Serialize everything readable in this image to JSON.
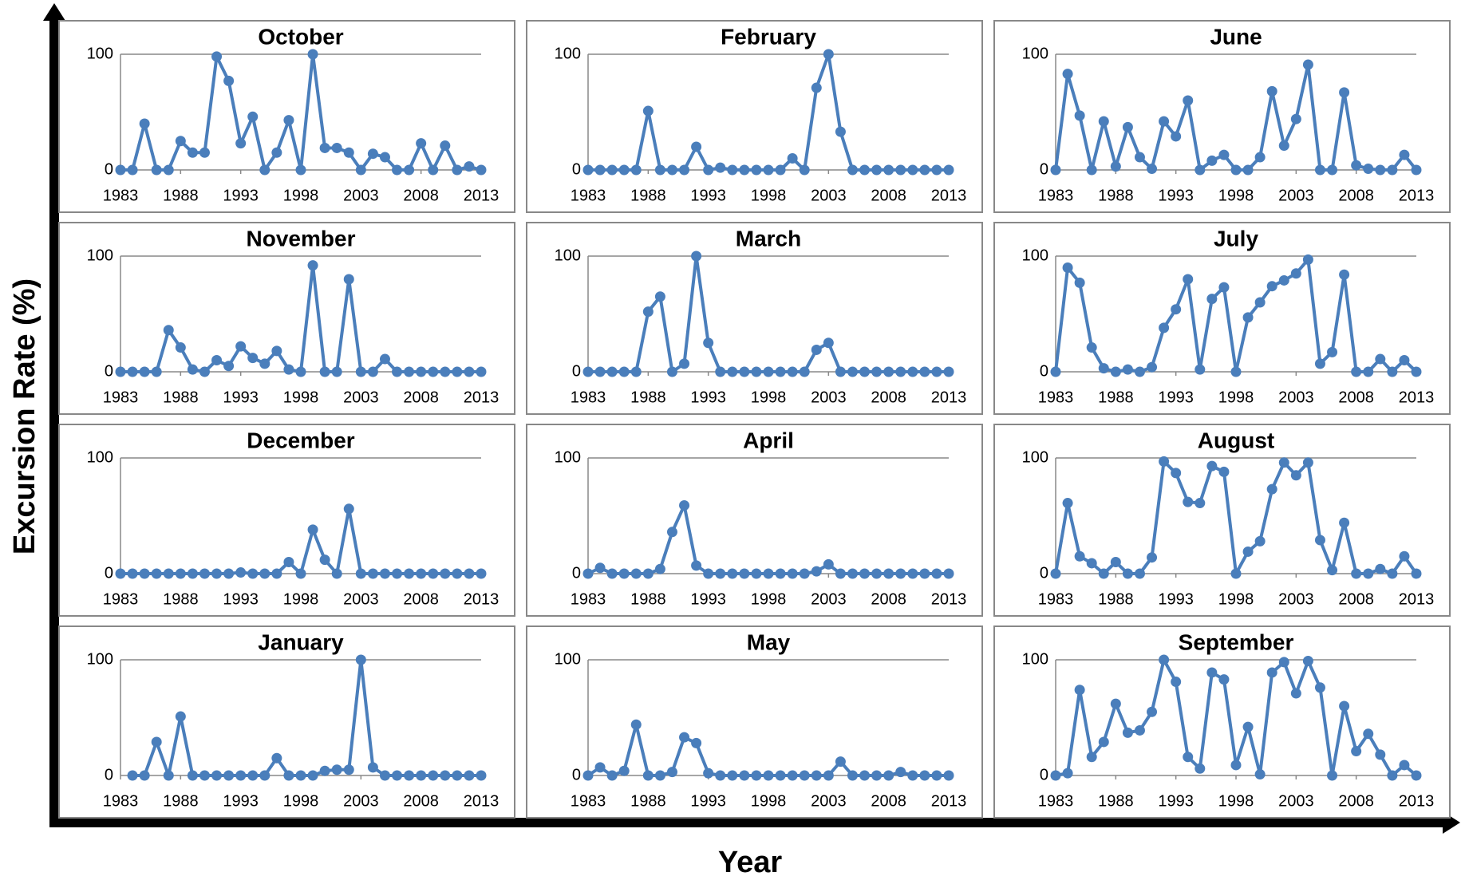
{
  "axis_labels": {
    "y": "Excursion Rate (%)",
    "x": "Year"
  },
  "chart_data": [
    {
      "type": "line",
      "title": "October",
      "color": "#4a7ebb",
      "grid": true,
      "xlim": [
        1983,
        2013
      ],
      "ylim": [
        0,
        100
      ],
      "xticks": [
        1983,
        1988,
        1993,
        1998,
        2003,
        2008,
        2013
      ],
      "yticks": [
        0,
        100
      ],
      "x": [
        1983,
        1984,
        1985,
        1986,
        1987,
        1988,
        1989,
        1990,
        1991,
        1992,
        1993,
        1994,
        1995,
        1996,
        1997,
        1998,
        1999,
        2000,
        2001,
        2002,
        2003,
        2004,
        2005,
        2006,
        2007,
        2008,
        2009,
        2010,
        2011,
        2012,
        2013
      ],
      "series": [
        {
          "values": [
            0,
            0,
            40,
            0,
            0,
            25,
            15,
            15,
            98,
            77,
            23,
            46,
            0,
            15,
            43,
            0,
            100,
            19,
            19,
            15,
            0,
            14,
            11,
            0,
            0,
            23,
            0,
            21,
            0,
            3,
            0
          ]
        }
      ]
    },
    {
      "type": "line",
      "title": "February",
      "color": "#4a7ebb",
      "grid": true,
      "xlim": [
        1983,
        2013
      ],
      "ylim": [
        0,
        100
      ],
      "xticks": [
        1983,
        1988,
        1993,
        1998,
        2003,
        2008,
        2013
      ],
      "yticks": [
        0,
        100
      ],
      "x": [
        1983,
        1984,
        1985,
        1986,
        1987,
        1988,
        1989,
        1990,
        1991,
        1992,
        1993,
        1994,
        1995,
        1996,
        1997,
        1998,
        1999,
        2000,
        2001,
        2002,
        2003,
        2004,
        2005,
        2006,
        2007,
        2008,
        2009,
        2010,
        2011,
        2012,
        2013
      ],
      "series": [
        {
          "values": [
            0,
            0,
            0,
            0,
            0,
            51,
            0,
            0,
            0,
            20,
            0,
            2,
            0,
            0,
            0,
            0,
            0,
            10,
            0,
            71,
            100,
            33,
            0,
            0,
            0,
            0,
            0,
            0,
            0,
            0,
            0
          ]
        }
      ]
    },
    {
      "type": "line",
      "title": "June",
      "color": "#4a7ebb",
      "grid": true,
      "xlim": [
        1983,
        2013
      ],
      "ylim": [
        0,
        100
      ],
      "xticks": [
        1983,
        1988,
        1993,
        1998,
        2003,
        2008,
        2013
      ],
      "yticks": [
        0,
        100
      ],
      "x": [
        1983,
        1984,
        1985,
        1986,
        1987,
        1988,
        1989,
        1990,
        1991,
        1992,
        1993,
        1994,
        1995,
        1996,
        1997,
        1998,
        1999,
        2000,
        2001,
        2002,
        2003,
        2004,
        2005,
        2006,
        2007,
        2008,
        2009,
        2010,
        2011,
        2012,
        2013
      ],
      "series": [
        {
          "values": [
            0,
            83,
            47,
            0,
            42,
            3,
            37,
            11,
            1,
            42,
            29,
            60,
            0,
            8,
            13,
            0,
            0,
            11,
            68,
            21,
            44,
            91,
            0,
            0,
            67,
            4,
            1,
            0,
            0,
            13,
            0
          ]
        }
      ]
    },
    {
      "type": "line",
      "title": "November",
      "color": "#4a7ebb",
      "grid": true,
      "xlim": [
        1983,
        2013
      ],
      "ylim": [
        0,
        100
      ],
      "xticks": [
        1983,
        1988,
        1993,
        1998,
        2003,
        2008,
        2013
      ],
      "yticks": [
        0,
        100
      ],
      "x": [
        1983,
        1984,
        1985,
        1986,
        1987,
        1988,
        1989,
        1990,
        1991,
        1992,
        1993,
        1994,
        1995,
        1996,
        1997,
        1998,
        1999,
        2000,
        2001,
        2002,
        2003,
        2004,
        2005,
        2006,
        2007,
        2008,
        2009,
        2010,
        2011,
        2012,
        2013
      ],
      "series": [
        {
          "values": [
            0,
            0,
            0,
            0,
            36,
            21,
            2,
            0,
            10,
            5,
            22,
            12,
            7,
            18,
            2,
            0,
            92,
            0,
            0,
            80,
            0,
            0,
            11,
            0,
            0,
            0,
            0,
            0,
            0,
            0,
            0
          ]
        }
      ]
    },
    {
      "type": "line",
      "title": "March",
      "color": "#4a7ebb",
      "grid": true,
      "xlim": [
        1983,
        2013
      ],
      "ylim": [
        0,
        100
      ],
      "xticks": [
        1983,
        1988,
        1993,
        1998,
        2003,
        2008,
        2013
      ],
      "yticks": [
        0,
        100
      ],
      "x": [
        1983,
        1984,
        1985,
        1986,
        1987,
        1988,
        1989,
        1990,
        1991,
        1992,
        1993,
        1994,
        1995,
        1996,
        1997,
        1998,
        1999,
        2000,
        2001,
        2002,
        2003,
        2004,
        2005,
        2006,
        2007,
        2008,
        2009,
        2010,
        2011,
        2012,
        2013
      ],
      "series": [
        {
          "values": [
            0,
            0,
            0,
            0,
            0,
            52,
            65,
            0,
            7,
            100,
            25,
            0,
            0,
            0,
            0,
            0,
            0,
            0,
            0,
            19,
            25,
            0,
            0,
            0,
            0,
            0,
            0,
            0,
            0,
            0,
            0
          ]
        }
      ]
    },
    {
      "type": "line",
      "title": "July",
      "color": "#4a7ebb",
      "grid": true,
      "xlim": [
        1983,
        2013
      ],
      "ylim": [
        0,
        100
      ],
      "xticks": [
        1983,
        1988,
        1993,
        1998,
        2003,
        2008,
        2013
      ],
      "yticks": [
        0,
        100
      ],
      "x": [
        1983,
        1984,
        1985,
        1986,
        1987,
        1988,
        1989,
        1990,
        1991,
        1992,
        1993,
        1994,
        1995,
        1996,
        1997,
        1998,
        1999,
        2000,
        2001,
        2002,
        2003,
        2004,
        2005,
        2006,
        2007,
        2008,
        2009,
        2010,
        2011,
        2012,
        2013
      ],
      "series": [
        {
          "values": [
            0,
            90,
            77,
            21,
            3,
            0,
            2,
            0,
            4,
            38,
            54,
            80,
            2,
            63,
            73,
            0,
            47,
            60,
            74,
            79,
            85,
            97,
            7,
            17,
            84,
            0,
            0,
            11,
            0,
            10,
            0
          ]
        }
      ]
    },
    {
      "type": "line",
      "title": "December",
      "color": "#4a7ebb",
      "grid": true,
      "xlim": [
        1983,
        2013
      ],
      "ylim": [
        0,
        100
      ],
      "xticks": [
        1983,
        1988,
        1993,
        1998,
        2003,
        2008,
        2013
      ],
      "yticks": [
        0,
        100
      ],
      "x": [
        1983,
        1984,
        1985,
        1986,
        1987,
        1988,
        1989,
        1990,
        1991,
        1992,
        1993,
        1994,
        1995,
        1996,
        1997,
        1998,
        1999,
        2000,
        2001,
        2002,
        2003,
        2004,
        2005,
        2006,
        2007,
        2008,
        2009,
        2010,
        2011,
        2012,
        2013
      ],
      "series": [
        {
          "values": [
            0,
            0,
            0,
            0,
            0,
            0,
            0,
            0,
            0,
            0,
            1,
            0,
            0,
            0,
            10,
            0,
            38,
            12,
            0,
            56,
            0,
            0,
            0,
            0,
            0,
            0,
            0,
            0,
            0,
            0,
            0
          ]
        }
      ]
    },
    {
      "type": "line",
      "title": "April",
      "color": "#4a7ebb",
      "grid": true,
      "xlim": [
        1983,
        2013
      ],
      "ylim": [
        0,
        100
      ],
      "xticks": [
        1983,
        1988,
        1993,
        1998,
        2003,
        2008,
        2013
      ],
      "yticks": [
        0,
        100
      ],
      "x": [
        1983,
        1984,
        1985,
        1986,
        1987,
        1988,
        1989,
        1990,
        1991,
        1992,
        1993,
        1994,
        1995,
        1996,
        1997,
        1998,
        1999,
        2000,
        2001,
        2002,
        2003,
        2004,
        2005,
        2006,
        2007,
        2008,
        2009,
        2010,
        2011,
        2012,
        2013
      ],
      "series": [
        {
          "values": [
            0,
            5,
            0,
            0,
            0,
            0,
            4,
            36,
            59,
            7,
            0,
            0,
            0,
            0,
            0,
            0,
            0,
            0,
            0,
            2,
            8,
            0,
            0,
            0,
            0,
            0,
            0,
            0,
            0,
            0,
            0
          ]
        }
      ]
    },
    {
      "type": "line",
      "title": "August",
      "color": "#4a7ebb",
      "grid": true,
      "xlim": [
        1983,
        2013
      ],
      "ylim": [
        0,
        100
      ],
      "xticks": [
        1983,
        1988,
        1993,
        1998,
        2003,
        2008,
        2013
      ],
      "yticks": [
        0,
        100
      ],
      "x": [
        1983,
        1984,
        1985,
        1986,
        1987,
        1988,
        1989,
        1990,
        1991,
        1992,
        1993,
        1994,
        1995,
        1996,
        1997,
        1998,
        1999,
        2000,
        2001,
        2002,
        2003,
        2004,
        2005,
        2006,
        2007,
        2008,
        2009,
        2010,
        2011,
        2012,
        2013
      ],
      "series": [
        {
          "values": [
            0,
            61,
            15,
            9,
            0,
            10,
            0,
            0,
            14,
            97,
            87,
            62,
            61,
            93,
            88,
            0,
            19,
            28,
            73,
            96,
            85,
            96,
            29,
            3,
            44,
            0,
            0,
            4,
            0,
            15,
            0
          ]
        }
      ]
    },
    {
      "type": "line",
      "title": "January",
      "color": "#4a7ebb",
      "grid": true,
      "xlim": [
        1983,
        2013
      ],
      "ylim": [
        0,
        100
      ],
      "xticks": [
        1983,
        1988,
        1993,
        1998,
        2003,
        2008,
        2013
      ],
      "yticks": [
        0,
        100
      ],
      "x": [
        1983,
        1984,
        1985,
        1986,
        1987,
        1988,
        1989,
        1990,
        1991,
        1992,
        1993,
        1994,
        1995,
        1996,
        1997,
        1998,
        1999,
        2000,
        2001,
        2002,
        2003,
        2004,
        2005,
        2006,
        2007,
        2008,
        2009,
        2010,
        2011,
        2012,
        2013
      ],
      "series": [
        {
          "values": [
            null,
            0,
            0,
            29,
            0,
            51,
            0,
            0,
            0,
            0,
            0,
            0,
            0,
            15,
            0,
            0,
            0,
            4,
            5,
            5,
            100,
            7,
            0,
            0,
            0,
            0,
            0,
            0,
            0,
            0,
            0
          ]
        }
      ]
    },
    {
      "type": "line",
      "title": "May",
      "color": "#4a7ebb",
      "grid": true,
      "xlim": [
        1983,
        2013
      ],
      "ylim": [
        0,
        100
      ],
      "xticks": [
        1983,
        1988,
        1993,
        1998,
        2003,
        2008,
        2013
      ],
      "yticks": [
        0,
        100
      ],
      "x": [
        1983,
        1984,
        1985,
        1986,
        1987,
        1988,
        1989,
        1990,
        1991,
        1992,
        1993,
        1994,
        1995,
        1996,
        1997,
        1998,
        1999,
        2000,
        2001,
        2002,
        2003,
        2004,
        2005,
        2006,
        2007,
        2008,
        2009,
        2010,
        2011,
        2012,
        2013
      ],
      "series": [
        {
          "values": [
            0,
            7,
            0,
            4,
            44,
            0,
            0,
            3,
            33,
            28,
            2,
            0,
            0,
            0,
            0,
            0,
            0,
            0,
            0,
            0,
            0,
            12,
            0,
            0,
            0,
            0,
            3,
            0,
            0,
            0,
            0
          ]
        }
      ]
    },
    {
      "type": "line",
      "title": "September",
      "color": "#4a7ebb",
      "grid": true,
      "xlim": [
        1983,
        2013
      ],
      "ylim": [
        0,
        100
      ],
      "xticks": [
        1983,
        1988,
        1993,
        1998,
        2003,
        2008,
        2013
      ],
      "yticks": [
        0,
        100
      ],
      "x": [
        1983,
        1984,
        1985,
        1986,
        1987,
        1988,
        1989,
        1990,
        1991,
        1992,
        1993,
        1994,
        1995,
        1996,
        1997,
        1998,
        1999,
        2000,
        2001,
        2002,
        2003,
        2004,
        2005,
        2006,
        2007,
        2008,
        2009,
        2010,
        2011,
        2012,
        2013
      ],
      "series": [
        {
          "values": [
            0,
            2,
            74,
            16,
            29,
            62,
            37,
            39,
            55,
            100,
            81,
            16,
            6,
            89,
            83,
            9,
            42,
            1,
            89,
            98,
            71,
            99,
            76,
            0,
            60,
            21,
            36,
            18,
            0,
            9,
            0
          ]
        }
      ]
    }
  ]
}
